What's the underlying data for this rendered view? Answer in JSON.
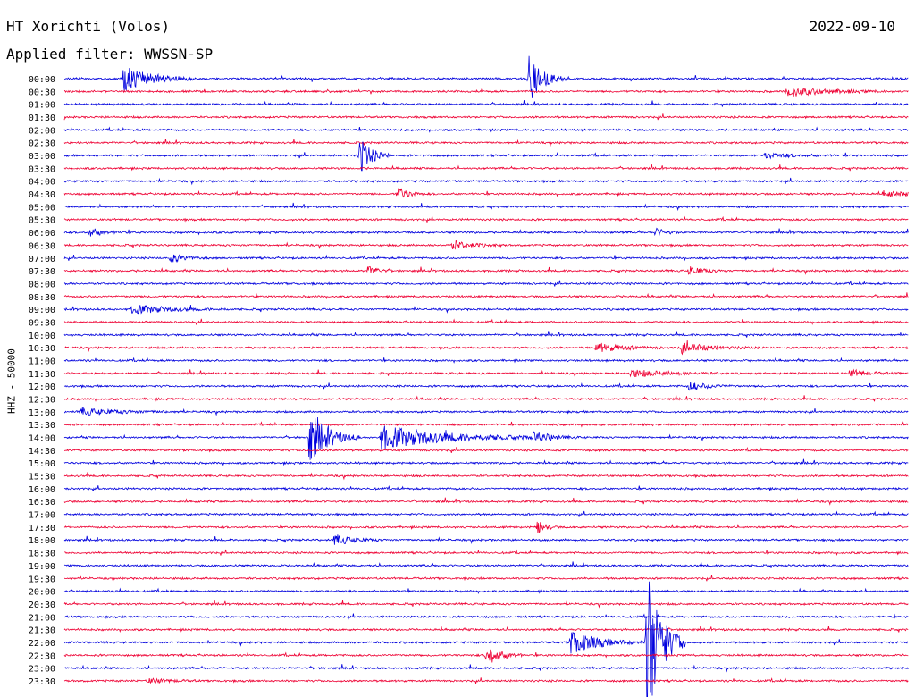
{
  "header": {
    "station": "HT Xorichti (Volos)",
    "date": "2022-09-10",
    "filter": "Applied filter: WWSSN-SP",
    "channel_label": "HHZ - 50000"
  },
  "colors": {
    "even": "#0000dd",
    "odd": "#ee0033"
  },
  "chart_data": {
    "type": "line",
    "title": "HT Xorichti (Volos)",
    "subtitle": "Applied filter: WWSSN-SP",
    "ylabel": "HHZ - 50000",
    "row_interval_minutes": 30,
    "rows": [
      "00:00",
      "00:30",
      "01:00",
      "01:30",
      "02:00",
      "02:30",
      "03:00",
      "03:30",
      "04:00",
      "04:30",
      "05:00",
      "05:30",
      "06:00",
      "06:30",
      "07:00",
      "07:30",
      "08:00",
      "08:30",
      "09:00",
      "09:30",
      "10:00",
      "10:30",
      "11:00",
      "11:30",
      "12:00",
      "12:30",
      "13:00",
      "13:30",
      "14:00",
      "14:30",
      "15:00",
      "15:30",
      "16:00",
      "16:30",
      "17:00",
      "17:30",
      "18:00",
      "18:30",
      "19:00",
      "19:30",
      "20:00",
      "20:30",
      "21:00",
      "21:30",
      "22:00",
      "22:30",
      "23:00",
      "23:30"
    ],
    "events": [
      {
        "row": "00:00",
        "t": 0.07,
        "amp": 14,
        "dur": 0.03
      },
      {
        "row": "00:00",
        "t": 0.55,
        "amp": 28,
        "dur": 0.015
      },
      {
        "row": "00:30",
        "t": 0.855,
        "amp": 6,
        "dur": 0.04
      },
      {
        "row": "03:00",
        "t": 0.35,
        "amp": 22,
        "dur": 0.012
      },
      {
        "row": "03:00",
        "t": 0.83,
        "amp": 3,
        "dur": 0.03
      },
      {
        "row": "04:30",
        "t": 0.395,
        "amp": 9,
        "dur": 0.01
      },
      {
        "row": "04:30",
        "t": 0.97,
        "amp": 3,
        "dur": 0.03
      },
      {
        "row": "06:00",
        "t": 0.03,
        "amp": 5,
        "dur": 0.015
      },
      {
        "row": "06:00",
        "t": 0.7,
        "amp": 5,
        "dur": 0.01
      },
      {
        "row": "06:30",
        "t": 0.46,
        "amp": 5,
        "dur": 0.02
      },
      {
        "row": "07:00",
        "t": 0.125,
        "amp": 5,
        "dur": 0.015
      },
      {
        "row": "07:30",
        "t": 0.36,
        "amp": 6,
        "dur": 0.01
      },
      {
        "row": "07:30",
        "t": 0.74,
        "amp": 5,
        "dur": 0.015
      },
      {
        "row": "09:00",
        "t": 0.08,
        "amp": 5,
        "dur": 0.04
      },
      {
        "row": "10:30",
        "t": 0.63,
        "amp": 5,
        "dur": 0.03
      },
      {
        "row": "10:30",
        "t": 0.73,
        "amp": 6,
        "dur": 0.03
      },
      {
        "row": "11:30",
        "t": 0.67,
        "amp": 4,
        "dur": 0.04
      },
      {
        "row": "11:30",
        "t": 0.93,
        "amp": 4,
        "dur": 0.02
      },
      {
        "row": "12:00",
        "t": 0.74,
        "amp": 5,
        "dur": 0.02
      },
      {
        "row": "13:00",
        "t": 0.02,
        "amp": 4,
        "dur": 0.04
      },
      {
        "row": "14:00",
        "t": 0.29,
        "amp": 30,
        "dur": 0.02
      },
      {
        "row": "14:00",
        "t": 0.375,
        "amp": 13,
        "dur": 0.07
      },
      {
        "row": "14:00",
        "t": 0.555,
        "amp": 5,
        "dur": 0.02
      },
      {
        "row": "17:30",
        "t": 0.56,
        "amp": 8,
        "dur": 0.008
      },
      {
        "row": "18:00",
        "t": 0.32,
        "amp": 6,
        "dur": 0.02
      },
      {
        "row": "22:00",
        "t": 0.6,
        "amp": 14,
        "dur": 0.03
      },
      {
        "row": "22:00",
        "t": 0.69,
        "amp": 95,
        "dur": 0.015
      },
      {
        "row": "22:30",
        "t": 0.5,
        "amp": 12,
        "dur": 0.015
      },
      {
        "row": "23:30",
        "t": 0.1,
        "amp": 3,
        "dur": 0.02
      }
    ]
  }
}
